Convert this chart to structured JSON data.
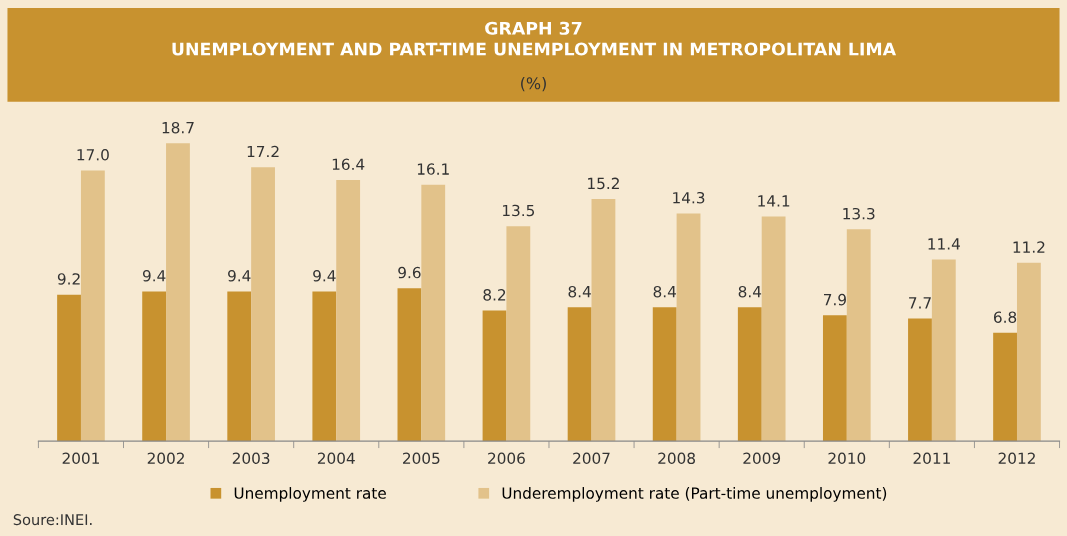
{
  "chart_data": {
    "type": "bar",
    "title": "GRAPH 37\nUNEMPLOYMENT AND PART-TIME UNEMPLOYMENT IN METROPOLITAN LIMA",
    "subtitle": "(%)",
    "categories": [
      "2001",
      "2002",
      "2003",
      "2004",
      "2005",
      "2006",
      "2007",
      "2008",
      "2009",
      "2010",
      "2011",
      "2012"
    ],
    "series": [
      {
        "name": "Unemployment rate",
        "color": "#c8922f",
        "values": [
          9.2,
          9.4,
          9.4,
          9.4,
          9.6,
          8.2,
          8.4,
          8.4,
          8.4,
          7.9,
          7.7,
          6.8
        ],
        "value_labels": [
          "9.2",
          "9.4",
          "9.4",
          "9.4",
          "9.6",
          "8.2",
          "8.4",
          "8.4",
          "8.4",
          "7.9",
          "7.7",
          "6.8"
        ]
      },
      {
        "name": "Underemployment rate (Part-time unemployment)",
        "color": "#e2c28a",
        "values": [
          17.0,
          18.7,
          17.2,
          16.4,
          16.1,
          13.5,
          15.2,
          14.3,
          14.1,
          13.3,
          11.4,
          11.2
        ],
        "value_labels": [
          "17.0",
          "18.7",
          "17.2",
          "16.4",
          "16.1",
          "13.5",
          "15.2",
          "14.3",
          "14.1",
          "13.3",
          "11.4",
          "11.2"
        ]
      }
    ],
    "grid": false,
    "legend": "bottom",
    "annotations": [
      "Soure:INEI."
    ]
  }
}
